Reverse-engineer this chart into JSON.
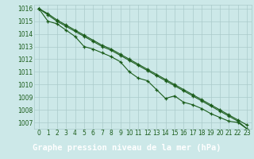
{
  "title": "Graphe pression niveau de la mer (hPa)",
  "x": [
    0,
    1,
    2,
    3,
    4,
    5,
    6,
    7,
    8,
    9,
    10,
    11,
    12,
    13,
    14,
    15,
    16,
    17,
    18,
    19,
    20,
    21,
    22,
    23
  ],
  "line1": [
    1016.0,
    1015.6,
    1015.1,
    1014.7,
    1014.3,
    1013.9,
    1013.5,
    1013.1,
    1012.8,
    1012.4,
    1012.0,
    1011.6,
    1011.2,
    1010.8,
    1010.4,
    1010.0,
    1009.6,
    1009.2,
    1008.8,
    1008.4,
    1008.0,
    1007.6,
    1007.2,
    1006.8
  ],
  "line2": [
    1016.0,
    1015.0,
    1014.8,
    1014.3,
    1013.8,
    1013.0,
    1012.8,
    1012.5,
    1012.2,
    1011.8,
    1011.0,
    1010.5,
    1010.3,
    1009.6,
    1008.9,
    1009.1,
    1008.6,
    1008.4,
    1008.1,
    1007.7,
    1007.4,
    1007.1,
    1007.0,
    1006.5
  ],
  "line3": [
    1016.0,
    1015.5,
    1015.0,
    1014.6,
    1014.2,
    1013.8,
    1013.4,
    1013.0,
    1012.7,
    1012.3,
    1011.9,
    1011.5,
    1011.1,
    1010.7,
    1010.3,
    1009.9,
    1009.5,
    1009.1,
    1008.7,
    1008.3,
    1007.9,
    1007.5,
    1007.1,
    1006.5
  ],
  "ylim_min": 1006.5,
  "ylim_max": 1016.3,
  "yticks": [
    1007,
    1008,
    1009,
    1010,
    1011,
    1012,
    1013,
    1014,
    1015,
    1016
  ],
  "line_color": "#1a5c1a",
  "bg_color": "#cce8e8",
  "grid_color": "#aacaca",
  "title_bg": "#2d6e2d",
  "title_fg": "#ffffff",
  "tick_label_color": "#1a5c1a",
  "tick_fontsize": 5.5,
  "title_fontsize": 7.5
}
